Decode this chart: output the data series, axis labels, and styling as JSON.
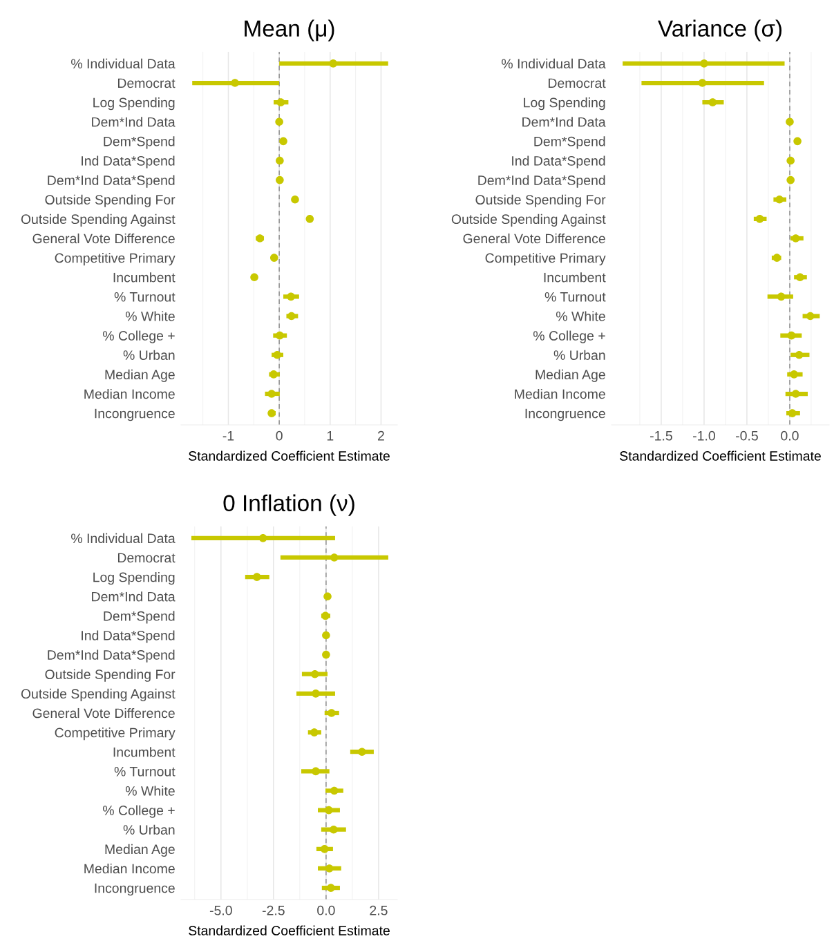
{
  "chart_data": [
    {
      "type": "scatter",
      "title": "Mean (μ)",
      "xlabel": "Standardized Coefficient Estimate",
      "orientation": "horizontal",
      "grid": "x",
      "marker": "circle",
      "color": "#c8c800",
      "categories": [
        "% Individual Data",
        "Democrat",
        "Log Spending",
        "Dem*Ind Data",
        "Dem*Spend",
        "Ind Data*Spend",
        "Dem*Ind Data*Spend",
        "Outside Spending For",
        "Outside Spending Against",
        "General Vote Difference",
        "Competitive Primary",
        "Incumbent",
        "% Turnout",
        "% White",
        "% College +",
        "% Urban",
        "Median Age",
        "Median Income",
        "Incongruence"
      ],
      "values": [
        1.06,
        -0.87,
        0.03,
        0.0,
        0.08,
        0.01,
        0.01,
        0.31,
        0.6,
        -0.38,
        -0.1,
        -0.49,
        0.23,
        0.24,
        0.01,
        -0.04,
        -0.11,
        -0.15,
        -0.15
      ],
      "errors": [
        [
          0.0,
          2.14
        ],
        [
          -1.71,
          0.0
        ],
        [
          -0.11,
          0.18
        ],
        null,
        null,
        null,
        null,
        null,
        null,
        [
          -0.46,
          -0.3
        ],
        null,
        null,
        [
          0.08,
          0.39
        ],
        [
          0.14,
          0.37
        ],
        [
          -0.12,
          0.15
        ],
        [
          -0.15,
          0.08
        ],
        [
          -0.2,
          0.01
        ],
        [
          -0.28,
          0.01
        ],
        [
          -0.2,
          -0.07
        ]
      ],
      "xlim": [
        -1.93,
        2.32
      ],
      "xticks": [
        {
          "value": -1.5,
          "label": null
        },
        -1,
        {
          "value": -0.5,
          "label": null
        },
        0,
        {
          "value": 0.5,
          "label": null
        },
        1,
        {
          "value": 1.5,
          "label": null
        },
        2
      ],
      "ref_lines": [
        {
          "axis": "x",
          "value": 0,
          "color": "#999999",
          "line_style": "dashed"
        }
      ]
    },
    {
      "type": "scatter",
      "title": "Variance (σ)",
      "xlabel": "Standardized Coefficient Estimate",
      "orientation": "horizontal",
      "grid": "x",
      "marker": "circle",
      "color": "#c8c800",
      "categories": [
        "% Individual Data",
        "Democrat",
        "Log Spending",
        "Dem*Ind Data",
        "Dem*Spend",
        "Ind Data*Spend",
        "Dem*Ind Data*Spend",
        "Outside Spending For",
        "Outside Spending Against",
        "General Vote Difference",
        "Competitive Primary",
        "Incumbent",
        "% Turnout",
        "% White",
        "% College +",
        "% Urban",
        "Median Age",
        "Median Income",
        "Incongruence"
      ],
      "values": [
        -1.0,
        -1.02,
        -0.9,
        0.0,
        0.09,
        0.01,
        0.01,
        -0.12,
        -0.35,
        0.07,
        -0.15,
        0.12,
        -0.1,
        0.24,
        0.02,
        0.11,
        0.05,
        0.07,
        0.03
      ],
      "errors": [
        [
          -1.95,
          -0.06
        ],
        [
          -1.73,
          -0.3
        ],
        [
          -1.02,
          -0.77
        ],
        null,
        null,
        null,
        null,
        [
          -0.19,
          -0.04
        ],
        [
          -0.42,
          -0.27
        ],
        [
          0.01,
          0.16
        ],
        [
          -0.21,
          -0.1
        ],
        [
          0.05,
          0.2
        ],
        [
          -0.26,
          0.04
        ],
        [
          0.15,
          0.35
        ],
        [
          -0.11,
          0.14
        ],
        [
          0.01,
          0.23
        ],
        [
          -0.03,
          0.15
        ],
        [
          -0.05,
          0.21
        ],
        [
          -0.04,
          0.12
        ]
      ],
      "xlim": [
        -2.08,
        0.46
      ],
      "xticks": [
        {
          "value": -1.75,
          "label": null
        },
        -1.5,
        {
          "value": -1.25,
          "label": null
        },
        {
          "value": -1.0,
          "label": "-1.0"
        },
        {
          "value": -0.75,
          "label": null
        },
        -0.5,
        {
          "value": -0.25,
          "label": null
        },
        {
          "value": 0.0,
          "label": "0.0"
        },
        {
          "value": 0.25,
          "label": null
        }
      ],
      "ref_lines": [
        {
          "axis": "x",
          "value": 0,
          "color": "#999999",
          "line_style": "dashed"
        }
      ]
    },
    {
      "type": "scatter",
      "title": "0 Inflation (ν)",
      "xlabel": "Standardized Coefficient Estimate",
      "orientation": "horizontal",
      "grid": "x",
      "marker": "circle",
      "color": "#c8c800",
      "categories": [
        "% Individual Data",
        "Democrat",
        "Log Spending",
        "Dem*Ind Data",
        "Dem*Spend",
        "Ind Data*Spend",
        "Dem*Ind Data*Spend",
        "Outside Spending For",
        "Outside Spending Against",
        "General Vote Difference",
        "Competitive Primary",
        "Incumbent",
        "% Turnout",
        "% White",
        "% College +",
        "% Urban",
        "Median Age",
        "Median Income",
        "Incongruence"
      ],
      "values": [
        -3.0,
        0.39,
        -3.29,
        0.07,
        -0.03,
        0.0,
        0.0,
        -0.53,
        -0.49,
        0.26,
        -0.56,
        1.71,
        -0.49,
        0.39,
        0.13,
        0.36,
        -0.07,
        0.16,
        0.23
      ],
      "errors": [
        [
          -6.41,
          0.43
        ],
        [
          -2.17,
          2.96
        ],
        [
          -3.85,
          -2.7
        ],
        null,
        [
          -0.23,
          0.2
        ],
        null,
        null,
        [
          -1.15,
          0.07
        ],
        [
          -1.41,
          0.43
        ],
        [
          -0.07,
          0.62
        ],
        [
          -0.86,
          -0.23
        ],
        [
          1.15,
          2.27
        ],
        [
          -1.18,
          0.16
        ],
        [
          -0.03,
          0.82
        ],
        [
          -0.39,
          0.66
        ],
        [
          -0.23,
          0.95
        ],
        [
          -0.46,
          0.33
        ],
        [
          -0.39,
          0.72
        ],
        [
          -0.2,
          0.66
        ]
      ],
      "xlim": [
        -6.9,
        3.39
      ],
      "xticks": [
        {
          "value": -6.25,
          "label": null
        },
        {
          "value": -5.0,
          "label": "-5.0"
        },
        {
          "value": -3.75,
          "label": null
        },
        -2.5,
        {
          "value": -1.25,
          "label": null
        },
        {
          "value": 0.0,
          "label": "0.0"
        },
        {
          "value": 1.25,
          "label": null
        },
        2.5
      ],
      "ref_lines": [
        {
          "axis": "x",
          "value": 0,
          "color": "#999999",
          "line_style": "dashed"
        }
      ]
    }
  ]
}
